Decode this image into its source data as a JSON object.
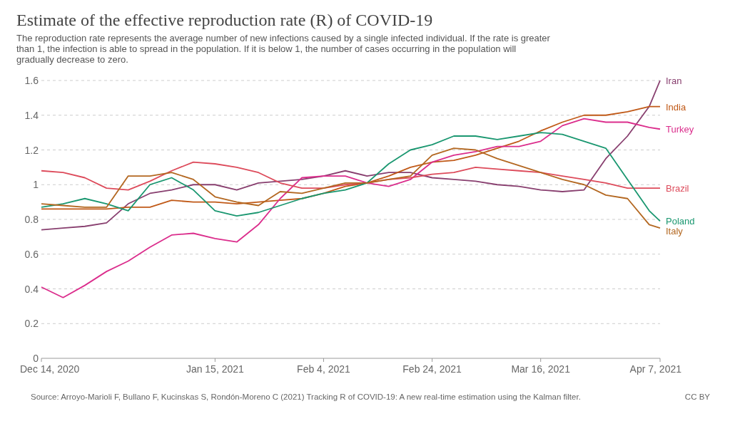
{
  "chart_data": {
    "type": "line",
    "title": "Estimate of the effective reproduction rate (R) of COVID-19",
    "subtitle": "The reproduction rate represents the average number of new infections caused by a single infected individual. If the rate is greater than 1, the infection is able to spread in the population. If it is below 1, the number of cases occurring in the population will gradually decrease to zero.",
    "x": [
      "2020-12-14",
      "2020-12-18",
      "2020-12-22",
      "2020-12-26",
      "2020-12-30",
      "2021-01-03",
      "2021-01-07",
      "2021-01-11",
      "2021-01-15",
      "2021-01-19",
      "2021-01-23",
      "2021-01-27",
      "2021-01-31",
      "2021-02-04",
      "2021-02-08",
      "2021-02-12",
      "2021-02-16",
      "2021-02-20",
      "2021-02-24",
      "2021-02-28",
      "2021-03-04",
      "2021-03-08",
      "2021-03-12",
      "2021-03-16",
      "2021-03-20",
      "2021-03-24",
      "2021-03-28",
      "2021-04-01",
      "2021-04-05",
      "2021-04-07"
    ],
    "series": [
      {
        "name": "Iran",
        "color": "#883f6f",
        "values": [
          0.74,
          0.75,
          0.76,
          0.78,
          0.89,
          0.95,
          0.97,
          1.0,
          1.0,
          0.97,
          1.01,
          1.02,
          1.03,
          1.05,
          1.08,
          1.05,
          1.07,
          1.07,
          1.04,
          1.03,
          1.02,
          1.0,
          0.99,
          0.97,
          0.96,
          0.97,
          1.15,
          1.28,
          1.45,
          1.6
        ]
      },
      {
        "name": "India",
        "color": "#c05917",
        "values": [
          0.86,
          0.86,
          0.86,
          0.86,
          0.87,
          0.87,
          0.91,
          0.9,
          0.9,
          0.89,
          0.9,
          0.91,
          0.92,
          0.95,
          0.99,
          1.01,
          1.05,
          1.1,
          1.13,
          1.14,
          1.17,
          1.21,
          1.25,
          1.31,
          1.36,
          1.4,
          1.4,
          1.42,
          1.45,
          1.45
        ]
      },
      {
        "name": "Turkey",
        "color": "#db2d8c",
        "values": [
          0.41,
          0.35,
          0.42,
          0.5,
          0.56,
          0.64,
          0.71,
          0.72,
          0.69,
          0.67,
          0.77,
          0.92,
          1.04,
          1.05,
          1.05,
          1.01,
          0.99,
          1.03,
          1.13,
          1.17,
          1.19,
          1.22,
          1.22,
          1.25,
          1.34,
          1.38,
          1.36,
          1.36,
          1.33,
          1.32
        ]
      },
      {
        "name": "Brazil",
        "color": "#dd4b5b",
        "values": [
          1.08,
          1.07,
          1.04,
          0.98,
          0.97,
          1.02,
          1.08,
          1.13,
          1.12,
          1.1,
          1.07,
          1.01,
          0.98,
          0.98,
          1.0,
          1.01,
          1.03,
          1.04,
          1.06,
          1.07,
          1.1,
          1.09,
          1.08,
          1.07,
          1.05,
          1.03,
          1.01,
          0.98,
          0.98,
          0.98
        ]
      },
      {
        "name": "Poland",
        "color": "#1a9770",
        "values": [
          0.87,
          0.89,
          0.92,
          0.89,
          0.85,
          1.0,
          1.04,
          0.97,
          0.85,
          0.82,
          0.84,
          0.88,
          0.92,
          0.95,
          0.97,
          1.01,
          1.12,
          1.2,
          1.23,
          1.28,
          1.28,
          1.26,
          1.28,
          1.3,
          1.29,
          1.25,
          1.21,
          1.03,
          0.85,
          0.79
        ]
      },
      {
        "name": "Italy",
        "color": "#b36720",
        "values": [
          0.89,
          0.88,
          0.87,
          0.87,
          1.05,
          1.05,
          1.07,
          1.03,
          0.93,
          0.9,
          0.88,
          0.96,
          0.95,
          0.98,
          1.01,
          1.01,
          1.03,
          1.05,
          1.17,
          1.21,
          1.2,
          1.15,
          1.11,
          1.07,
          1.03,
          1.0,
          0.94,
          0.92,
          0.77,
          0.75
        ]
      }
    ],
    "ylim": [
      0,
      1.6
    ],
    "yticks": [
      0,
      0.2,
      0.4,
      0.6,
      0.8,
      1,
      1.2,
      1.4,
      1.6
    ],
    "xlim": [
      "2020-12-14",
      "2021-04-07"
    ],
    "xticks": [
      {
        "value": "2020-12-14",
        "label": "Dec 14, 2020"
      },
      {
        "value": "2021-01-15",
        "label": "Jan 15, 2021"
      },
      {
        "value": "2021-02-04",
        "label": "Feb 4, 2021"
      },
      {
        "value": "2021-02-24",
        "label": "Feb 24, 2021"
      },
      {
        "value": "2021-03-16",
        "label": "Mar 16, 2021"
      },
      {
        "value": "2021-04-07",
        "label": "Apr 7, 2021"
      }
    ],
    "grid": "y",
    "legend": "right",
    "marker": "none",
    "line_style": "solid",
    "annotations": [
      "Source: Arroyo-Marioli F, Bullano F, Kucinskas S, Rondón-Moreno C (2021) Tracking R of COVID-19: A new real-time estimation using the Kalman filter.",
      "CC BY"
    ]
  }
}
